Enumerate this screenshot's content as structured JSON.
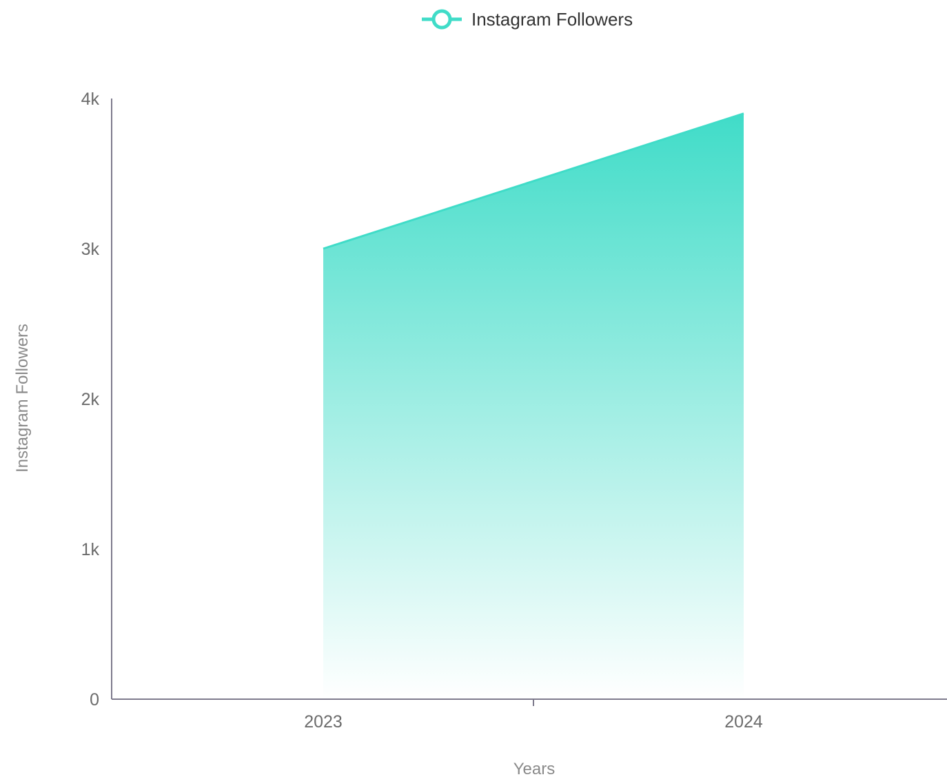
{
  "chart_data": {
    "type": "area",
    "title": "",
    "xlabel": "Years",
    "ylabel": "Instagram Followers",
    "categories": [
      "2023",
      "2024"
    ],
    "series": [
      {
        "name": "Instagram Followers",
        "values": [
          3000,
          3900
        ]
      }
    ],
    "ylim": [
      0,
      4000
    ],
    "y_ticks": [
      0,
      1000,
      2000,
      3000,
      4000
    ],
    "y_tick_labels": [
      "0",
      "1k",
      "2k",
      "3k",
      "4k"
    ],
    "grid": false,
    "legend_position": "top-center",
    "colors": {
      "series": "#40dcc8",
      "axis": "#7d7a8c",
      "tick_text": "#6b6b6b",
      "legend_text": "#333333"
    }
  }
}
